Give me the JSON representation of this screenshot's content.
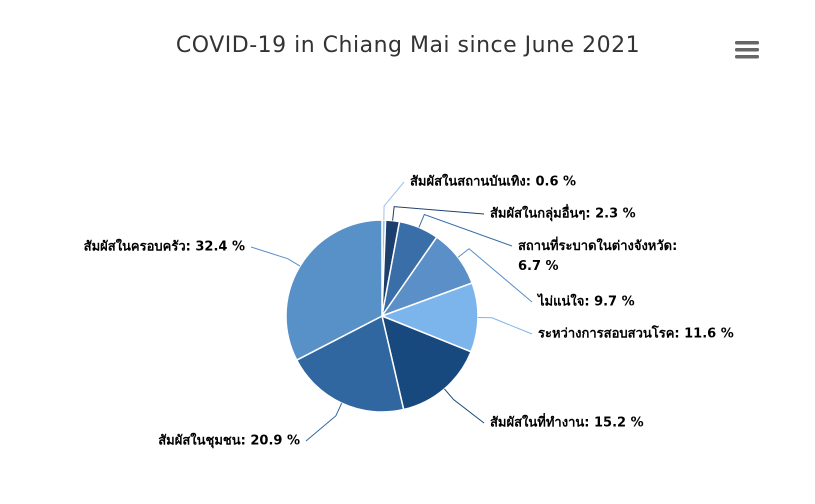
{
  "chart_data": {
    "type": "pie",
    "title": "COVID-19 in Chiang Mai since June 2021",
    "values": [
      0.6,
      2.3,
      6.7,
      9.7,
      11.6,
      15.2,
      20.9,
      32.4
    ],
    "value_labels": [
      "สัมผัสในสถานบันเทิง: 0.6 %",
      "สัมผัสในกลุ่มอื่นๆ: 2.3 %",
      "สถานที่ระบาดในต่างจังหวัด: 6.7 %",
      "ไม่แน่ใจ: 9.7 %",
      "ระหว่างการสอบสวนโรค: 11.6 %",
      "สัมผัสในที่ทำงาน: 15.2 %",
      "สัมผัสในชุมชน: 20.9 %",
      "สัมผัสในครอบครัว: 32.4 %"
    ],
    "colors": [
      "#9cc3ea",
      "#1c3f6e",
      "#3a6ea8",
      "#5b8fc8",
      "#7cb5ec",
      "#17497e",
      "#3167a0",
      "#5890c8"
    ]
  }
}
